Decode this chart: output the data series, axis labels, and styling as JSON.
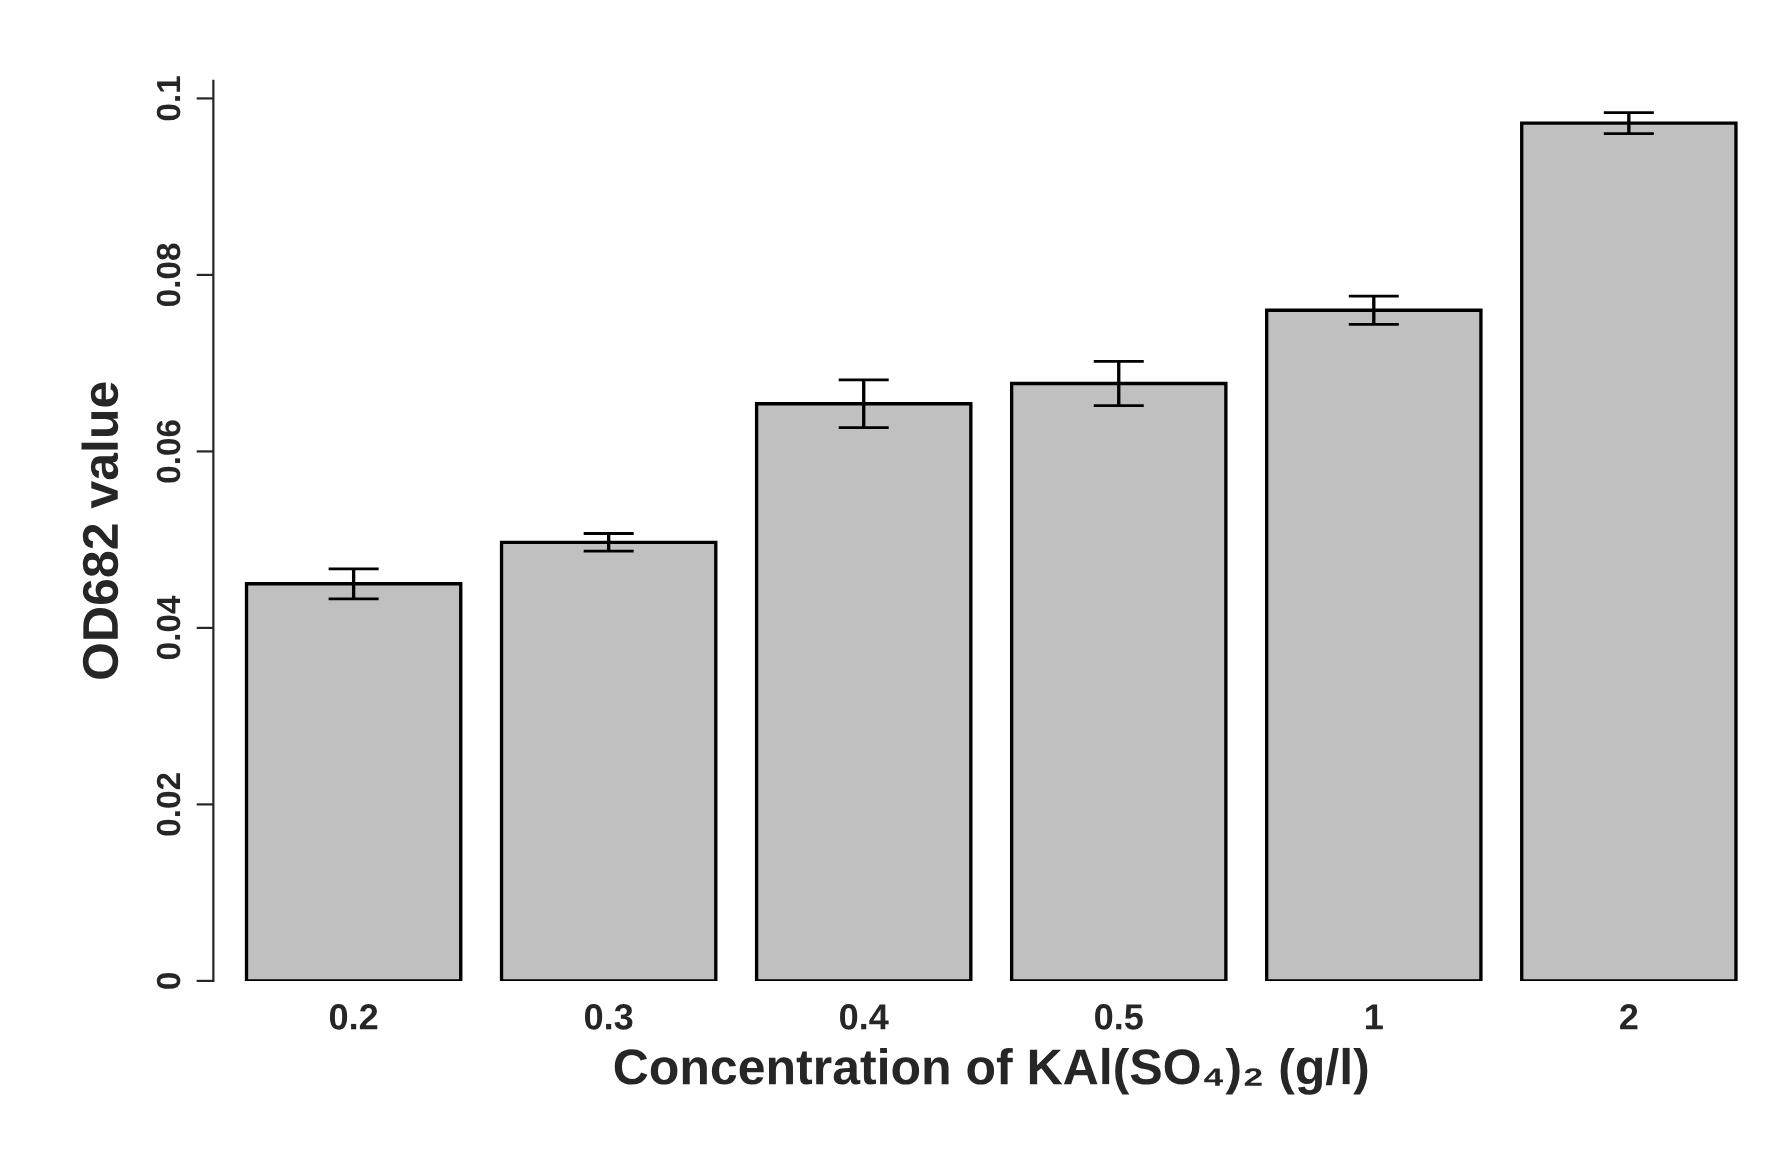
{
  "chart_data": {
    "type": "bar",
    "xlabel": "Concentration of KAl(SO₄)₂ (g/l)",
    "ylabel": "OD682 value",
    "categories": [
      "0.2",
      "0.3",
      "0.4",
      "0.5",
      "1",
      "2"
    ],
    "series": [
      {
        "color": "#c0c0c0",
        "values": [
          0.045,
          0.0497,
          0.0654,
          0.0677,
          0.076,
          0.0972
        ],
        "errors": [
          0.0017,
          0.001,
          0.0027,
          0.0025,
          0.0016,
          0.0012
        ]
      }
    ],
    "ylim": [
      0,
      0.102
    ],
    "yticks": [
      0,
      0.02,
      0.04,
      0.06,
      0.08,
      0.1
    ],
    "grid": false,
    "legend": false
  }
}
